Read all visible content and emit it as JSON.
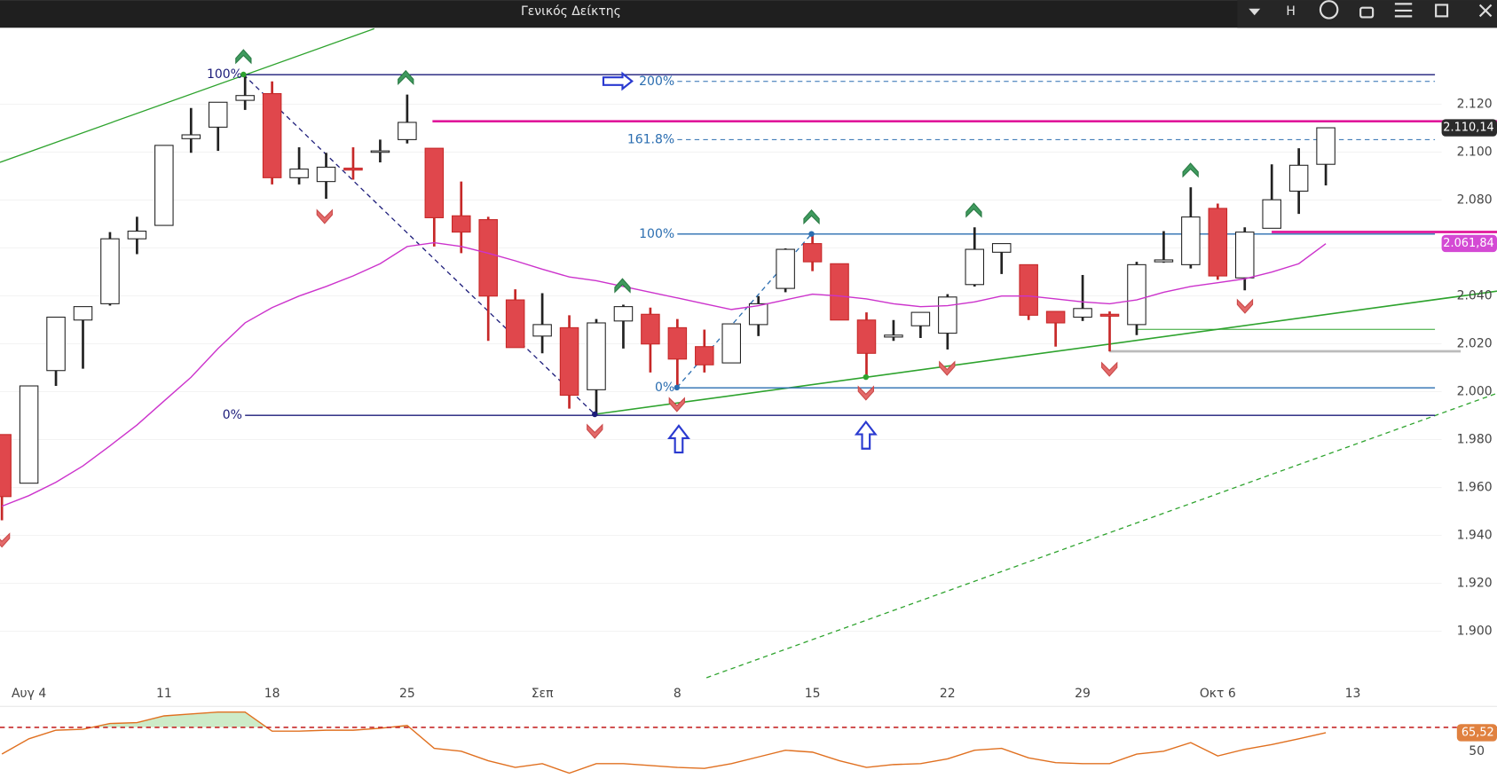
{
  "chart_data": [
    {
      "type": "candlestick",
      "title": "Γενικός Δείκτης",
      "categories": [
        null,
        "Αυγ 4",
        null,
        null,
        null,
        null,
        "11",
        null,
        null,
        null,
        "18",
        null,
        null,
        null,
        null,
        "25",
        null,
        null,
        null,
        null,
        "Σεπ",
        null,
        null,
        null,
        null,
        "8",
        null,
        null,
        null,
        null,
        "15",
        null,
        null,
        null,
        null,
        "22",
        null,
        null,
        null,
        null,
        "29",
        null,
        null,
        null,
        null,
        "Οκτ 6",
        null,
        null,
        null,
        null,
        "13"
      ],
      "open": [
        1982.1,
        1961.8,
        2008.8,
        2029.9,
        2036.7,
        2063.8,
        2069.4,
        2105.6,
        2110.4,
        2121.6,
        2124.4,
        2089.3,
        2087.7,
        2093.3,
        2100.5,
        2105.2,
        2101.6,
        2073.4,
        2071.8,
        2038.3,
        2023.2,
        2026.7,
        2000.8,
        2029.5,
        2032.3,
        2026.7,
        2018.8,
        2012.0,
        2028.0,
        2043.1,
        2061.8,
        2053.4,
        2029.9,
        2022.8,
        2027.5,
        2024.4,
        2044.7,
        2058.2,
        2053.0,
        2033.5,
        2031.1,
        2032.3,
        2028.0,
        2054.2,
        2053.0,
        2076.5,
        2047.5,
        2068.2,
        2083.7,
        2094.9,
        null
      ],
      "high": [
        1982.1,
        2002.4,
        2031.1,
        2035.5,
        2066.6,
        2073.0,
        2102.8,
        2118.4,
        2120.8,
        2132.3,
        2129.5,
        2102.0,
        2099.7,
        2102.0,
        2105.2,
        2124.0,
        2101.6,
        2087.7,
        2073.0,
        2042.7,
        2041.1,
        2031.9,
        2030.3,
        2036.3,
        2035.1,
        2030.3,
        2025.9,
        2028.3,
        2039.9,
        2059.8,
        2065.8,
        2053.4,
        2033.1,
        2029.9,
        2033.1,
        2040.7,
        2068.6,
        2061.8,
        2053.0,
        2033.5,
        2048.7,
        2033.5,
        2054.2,
        2067.0,
        2085.3,
        2078.5,
        2068.6,
        2094.9,
        2101.6,
        2110.14,
        null
      ],
      "low": [
        1946.3,
        1961.8,
        2002.4,
        2009.6,
        2035.9,
        2057.4,
        2069.4,
        2099.7,
        2100.5,
        2117.6,
        2086.5,
        2086.5,
        2080.5,
        2088.5,
        2095.7,
        2103.6,
        2060.6,
        2057.8,
        2021.2,
        2018.4,
        2016.0,
        1992.9,
        1990.1,
        2018.0,
        2008.0,
        2001.6,
        2008.0,
        2012.0,
        2023.2,
        2041.5,
        2050.3,
        2029.9,
        2006.0,
        2021.2,
        2022.4,
        2017.6,
        2043.9,
        2049.1,
        2029.9,
        2018.8,
        2029.5,
        2016.8,
        2023.6,
        2053.8,
        2051.4,
        2046.7,
        2042.3,
        2068.2,
        2074.2,
        2086.1,
        null
      ],
      "close": [
        1956.2,
        2002.4,
        2031.1,
        2035.5,
        2063.8,
        2067.0,
        2102.8,
        2107.2,
        2120.8,
        2123.6,
        2089.3,
        2092.9,
        2093.7,
        2092.5,
        2100.5,
        2112.4,
        2072.6,
        2066.6,
        2039.9,
        2018.4,
        2028.0,
        1998.5,
        2028.7,
        2035.5,
        2019.9,
        2013.6,
        2011.2,
        2028.3,
        2036.7,
        2059.4,
        2054.2,
        2029.9,
        2016.0,
        2023.6,
        2033.1,
        2039.5,
        2059.4,
        2061.8,
        2031.9,
        2028.7,
        2034.7,
        2031.5,
        2053.0,
        2055.0,
        2072.9,
        2048.3,
        2066.6,
        2080.1,
        2094.5,
        2110.14,
        null
      ],
      "colors": {
        "up": "#ffffff",
        "up_edge": "#222222",
        "down": "#e0474c",
        "down_edge": "#c62828"
      },
      "ma": {
        "color": "#cc33cc",
        "values": [
          1952.2,
          1956.6,
          1962.2,
          1969.0,
          1977.4,
          1986.1,
          1996.1,
          2006.0,
          2018.0,
          2028.7,
          2035.1,
          2039.9,
          2043.9,
          2048.3,
          2053.4,
          2060.6,
          2062.2,
          2060.6,
          2057.8,
          2054.6,
          2051.1,
          2047.9,
          2046.3,
          2043.9,
          2041.5,
          2039.1,
          2036.7,
          2034.3,
          2035.9,
          2038.3,
          2040.7,
          2039.9,
          2038.7,
          2036.7,
          2035.5,
          2035.9,
          2037.5,
          2039.9,
          2039.9,
          2038.7,
          2037.5,
          2036.7,
          2038.3,
          2041.5,
          2043.9,
          2045.5,
          2047.1,
          2049.9,
          2053.4,
          2061.8,
          null
        ]
      },
      "ylim": [
        1880.6,
        2151.5
      ],
      "yticks": [
        {
          "value": 1900,
          "label": "1.900"
        },
        {
          "value": 1920,
          "label": "1.920"
        },
        {
          "value": 1940,
          "label": "1.940"
        },
        {
          "value": 1960,
          "label": "1.960"
        },
        {
          "value": 1980,
          "label": "1.980"
        },
        {
          "value": 2000,
          "label": "2.000"
        },
        {
          "value": 2020,
          "label": "2.020"
        },
        {
          "value": 2040,
          "label": "2.040"
        },
        {
          "value": 2060,
          "label": "2.060"
        },
        {
          "value": 2080,
          "label": "2.080"
        },
        {
          "value": 2100,
          "label": "2.100"
        },
        {
          "value": 2120,
          "label": "2.120"
        }
      ],
      "grid": true,
      "fib_retracement": {
        "color": "#1c1c7a",
        "levels": [
          {
            "label": "100%",
            "price": 2132.3,
            "dashed": false
          },
          {
            "label": "0%",
            "price": 1990.1,
            "dashed": false
          }
        ]
      },
      "fib_extension": {
        "color": "#2a6db0",
        "levels": [
          {
            "label": "200%",
            "price": 2129.5,
            "dashed": true
          },
          {
            "label": "161.8%",
            "price": 2105.2,
            "dashed": true
          },
          {
            "label": "100%",
            "price": 2065.8,
            "dashed": false
          },
          {
            "label": "0%",
            "price": 2001.6,
            "dashed": false
          }
        ]
      },
      "last_price": {
        "value": 2110.14,
        "label": "2.110,14",
        "color": "#2b2b2b"
      },
      "ma_tag": {
        "value": 2061.84,
        "label": "2.061,84",
        "color": "#d44ad4"
      }
    },
    {
      "type": "line",
      "series": [
        {
          "color": "#e07020",
          "values": [
            47.6,
            60.4,
            67.6,
            68.4,
            73.2,
            74.0,
            79.6,
            81.2,
            82.8,
            82.8,
            66.8,
            66.8,
            67.6,
            67.6,
            69.2,
            71.6,
            52.4,
            50,
            42,
            36.4,
            39.6,
            31.6,
            39.6,
            39.6,
            38,
            36.4,
            35.6,
            39.6,
            45.2,
            50.8,
            49.2,
            42,
            36.4,
            38.8,
            39.6,
            43.6,
            50.8,
            52.4,
            44.4,
            40.4,
            39.6,
            39.6,
            47.6,
            50,
            57.2,
            46,
            51.6,
            55.6,
            60.4,
            65.52,
            null
          ]
        }
      ],
      "ylim": [
        27.6,
        87.6
      ],
      "yticks": [
        50
      ],
      "level": 70,
      "level_color": "#c62828",
      "fill_color": "#cdebc8",
      "last_label": {
        "value": 65.52,
        "label": "65,52",
        "color": "#e0813f"
      }
    }
  ],
  "toolbar": {
    "label": "H"
  }
}
